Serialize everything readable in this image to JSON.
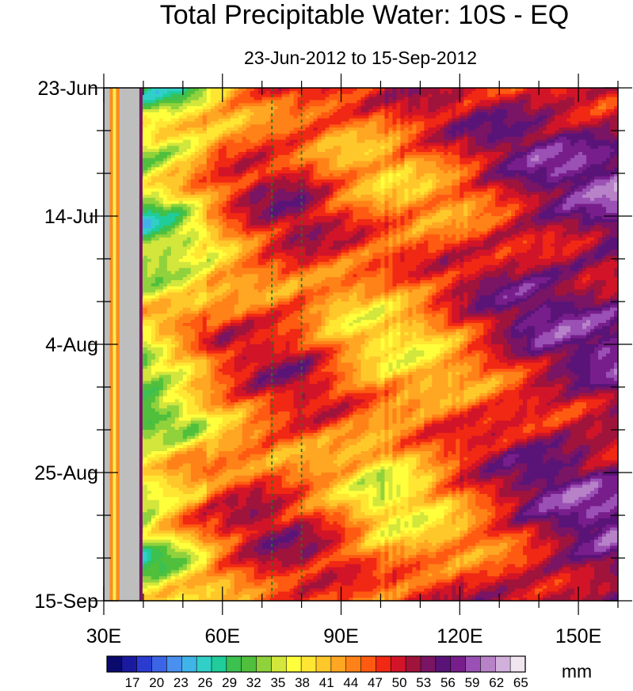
{
  "chart_data": {
    "type": "heatmap",
    "title": "Total Precipitable Water: 10S - EQ",
    "subtitle": "23-Jun-2012 to 15-Sep-2012",
    "x": {
      "type": "longitude",
      "range_deg": [
        30,
        160
      ],
      "tick_values": [
        30,
        60,
        90,
        120,
        150
      ],
      "tick_labels": [
        "30E",
        "60E",
        "90E",
        "120E",
        "150E"
      ]
    },
    "y": {
      "type": "date",
      "range": [
        "2012-06-23",
        "2012-09-15"
      ],
      "tick_dates": [
        "2012-06-23",
        "2012-07-14",
        "2012-08-04",
        "2012-08-25",
        "2012-09-15"
      ],
      "tick_labels": [
        "23-Jun",
        "14-Jul",
        "4-Aug",
        "25-Aug",
        "15-Sep"
      ],
      "reversed": true
    },
    "missing_value_color": "#bebebe",
    "missing_regions_lon": [
      [
        30,
        31.5
      ],
      [
        34,
        39
      ]
    ],
    "reference_lines_lon": [
      72.5,
      80
    ],
    "reference_line_color": "#1e7a1e",
    "colorbar": {
      "units": "mm",
      "levels": [
        17,
        20,
        23,
        26,
        29,
        32,
        35,
        38,
        41,
        44,
        47,
        50,
        53,
        56,
        59,
        62,
        65
      ],
      "colors": [
        "#0a0a6e",
        "#1a1aa0",
        "#2a3cd0",
        "#3c64e6",
        "#4a90ee",
        "#40b4e8",
        "#30d0c8",
        "#20cc9a",
        "#3cc050",
        "#50c03c",
        "#90d23c",
        "#d2e63c",
        "#ffff3c",
        "#ffe632",
        "#ffc82a",
        "#ffa622",
        "#ff8218",
        "#ff5a12",
        "#f02814",
        "#d21428",
        "#a0143c",
        "#7a1464",
        "#5a1478",
        "#781e8c",
        "#9a50b4",
        "#b882c8",
        "#d2b0dc",
        "#f0e6f0"
      ]
    },
    "representative_values_mm": {
      "lon": [
        40,
        50,
        60,
        70,
        80,
        90,
        100,
        110,
        120,
        130,
        140,
        150,
        160
      ],
      "rows": [
        {
          "date": "2012-06-23",
          "values": [
            33,
            37,
            46,
            50,
            51,
            48,
            47,
            49,
            50,
            52,
            53,
            54,
            55
          ]
        },
        {
          "date": "2012-07-14",
          "values": [
            34,
            38,
            45,
            50,
            51,
            47,
            45,
            46,
            49,
            53,
            56,
            57,
            58
          ]
        },
        {
          "date": "2012-08-04",
          "values": [
            36,
            41,
            47,
            49,
            50,
            45,
            43,
            44,
            48,
            52,
            55,
            55,
            56
          ]
        },
        {
          "date": "2012-08-25",
          "values": [
            34,
            40,
            46,
            50,
            49,
            46,
            40,
            42,
            46,
            50,
            54,
            56,
            56
          ]
        },
        {
          "date": "2012-09-15",
          "values": [
            37,
            42,
            48,
            51,
            50,
            47,
            44,
            46,
            49,
            52,
            55,
            57,
            58
          ]
        }
      ]
    }
  }
}
